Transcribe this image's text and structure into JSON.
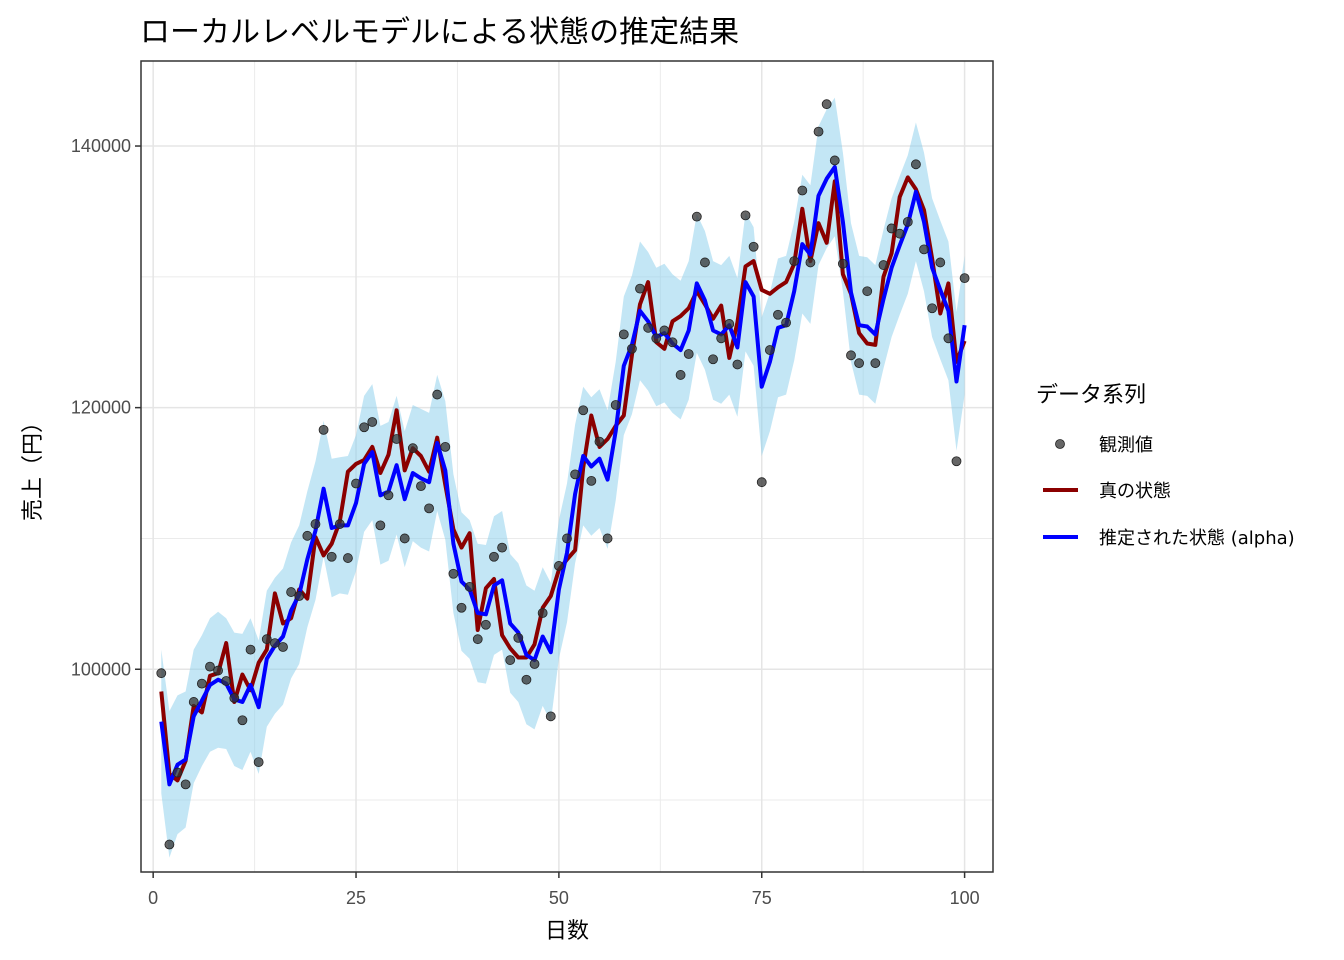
{
  "chart_data": {
    "type": "line",
    "title": "ローカルレベルモデルによる状態の推定結果",
    "xlabel": "日数",
    "ylabel": "売上（円）",
    "xlim": [
      -1.5,
      103.5
    ],
    "ylim": [
      84500,
      146500
    ],
    "x_ticks": [
      0,
      25,
      50,
      75,
      100
    ],
    "x_tick_labels": [
      "0",
      "25",
      "50",
      "75",
      "100"
    ],
    "y_ticks": [
      100000,
      120000,
      140000
    ],
    "y_tick_labels": [
      "100000",
      "120000",
      "140000"
    ],
    "grid": true,
    "legend_position": "right",
    "legend_title": "データ系列",
    "legend": [
      {
        "name": "観測値",
        "kind": "point",
        "color": "#333333"
      },
      {
        "name": "真の状態",
        "kind": "line",
        "color": "#8b0000"
      },
      {
        "name": "推定された状態 (alpha)",
        "kind": "line",
        "color": "#0000ff"
      }
    ],
    "interval_color": "#87ceeb",
    "x": [
      1,
      2,
      3,
      4,
      5,
      6,
      7,
      8,
      9,
      10,
      11,
      12,
      13,
      14,
      15,
      16,
      17,
      18,
      19,
      20,
      21,
      22,
      23,
      24,
      25,
      26,
      27,
      28,
      29,
      30,
      31,
      32,
      33,
      34,
      35,
      36,
      37,
      38,
      39,
      40,
      41,
      42,
      43,
      44,
      45,
      46,
      47,
      48,
      49,
      50,
      51,
      52,
      53,
      54,
      55,
      56,
      57,
      58,
      59,
      60,
      61,
      62,
      63,
      64,
      65,
      66,
      67,
      68,
      69,
      70,
      71,
      72,
      73,
      74,
      75,
      76,
      77,
      78,
      79,
      80,
      81,
      82,
      83,
      84,
      85,
      86,
      87,
      88,
      89,
      90,
      91,
      92,
      93,
      94,
      95,
      96,
      97,
      98,
      99,
      100
    ],
    "series": [
      {
        "name": "観測値",
        "type": "scatter",
        "values": [
          99700,
          86600,
          92100,
          91200,
          97500,
          98900,
          100200,
          99900,
          99100,
          97800,
          96100,
          101500,
          92900,
          102300,
          102000,
          101700,
          105900,
          105600,
          110200,
          111100,
          118300,
          108600,
          111100,
          108500,
          114200,
          118500,
          118900,
          111000,
          113300,
          117600,
          110000,
          116900,
          114000,
          112300,
          121000,
          117000,
          107300,
          104700,
          106300,
          102300,
          103400,
          108600,
          109300,
          100700,
          102400,
          99200,
          100400,
          104300,
          96400,
          107900,
          110000,
          114900,
          119800,
          114400,
          117400,
          110000,
          120200,
          125600,
          124500,
          129100,
          126100,
          125300,
          125900,
          125000,
          122500,
          124100,
          134600,
          131100,
          123700,
          125300,
          126400,
          123300,
          134700,
          132300,
          114300,
          124400,
          127100,
          126500,
          131200,
          136600,
          131100,
          141100,
          143200,
          138900,
          131000,
          124000,
          123400,
          128900,
          123400,
          130900,
          133700,
          133300,
          134200,
          138600,
          132100,
          127600,
          131100,
          125300,
          115900,
          129900
        ]
      },
      {
        "name": "真の状態",
        "type": "line",
        "values": [
          98300,
          92000,
          91500,
          93000,
          97200,
          96700,
          99500,
          99700,
          102000,
          97500,
          99600,
          98400,
          100500,
          101500,
          105800,
          103500,
          103900,
          106100,
          105400,
          110100,
          108700,
          109600,
          111300,
          115100,
          115700,
          116000,
          117000,
          115000,
          116400,
          119800,
          115200,
          116900,
          116300,
          115100,
          117700,
          114100,
          110700,
          109300,
          110400,
          103000,
          106200,
          106900,
          102600,
          101600,
          100900,
          100900,
          101900,
          104700,
          105600,
          107600,
          108400,
          109100,
          115400,
          119400,
          117000,
          117600,
          118600,
          119400,
          124000,
          127900,
          129600,
          125000,
          124500,
          126600,
          127000,
          127600,
          128900,
          127900,
          126800,
          127800,
          123800,
          126500,
          130800,
          131200,
          129000,
          128700,
          129200,
          129600,
          131000,
          135200,
          131200,
          134100,
          132600,
          137300,
          130200,
          128700,
          125700,
          124900,
          124800,
          130000,
          131800,
          136100,
          137600,
          136700,
          135100,
          131400,
          127200,
          129500,
          123500,
          125100
        ]
      },
      {
        "name": "推定された状態 (alpha)",
        "type": "line",
        "values": [
          96000,
          91200,
          92700,
          93100,
          96400,
          97600,
          98800,
          99200,
          98900,
          97700,
          97500,
          98800,
          97100,
          100800,
          101800,
          102500,
          104500,
          105700,
          108400,
          110600,
          113800,
          110800,
          111000,
          111000,
          112700,
          115700,
          116600,
          113300,
          113600,
          115600,
          113000,
          115000,
          114600,
          114300,
          117300,
          115200,
          109600,
          106700,
          106100,
          104300,
          104200,
          106400,
          106800,
          103500,
          102800,
          101100,
          100700,
          102500,
          101300,
          106100,
          108900,
          113400,
          116300,
          115500,
          116100,
          114500,
          118200,
          123200,
          124800,
          127400,
          126600,
          125400,
          125700,
          124900,
          124400,
          125900,
          129500,
          128200,
          125900,
          125600,
          126300,
          124600,
          129600,
          128500,
          121600,
          123500,
          126100,
          126300,
          128900,
          132500,
          131700,
          136200,
          137500,
          138400,
          134200,
          128800,
          126300,
          126200,
          125600,
          128300,
          130700,
          132400,
          134000,
          136500,
          134200,
          130700,
          129000,
          127400,
          122000,
          126300
        ]
      },
      {
        "name": "interval_upper",
        "type": "band_upper",
        "values": [
          101500,
          96800,
          98000,
          98300,
          101500,
          102600,
          103900,
          104400,
          103900,
          102800,
          102700,
          103900,
          102200,
          106000,
          107000,
          107700,
          109700,
          111000,
          113600,
          115900,
          119000,
          116100,
          116200,
          116300,
          117900,
          120900,
          121800,
          118600,
          118900,
          120900,
          118200,
          120200,
          119900,
          119600,
          122500,
          120500,
          114900,
          112000,
          111400,
          109600,
          109500,
          111700,
          112100,
          108800,
          108100,
          106400,
          106000,
          107800,
          106600,
          111400,
          114200,
          118700,
          121600,
          120800,
          121400,
          119800,
          123500,
          128500,
          130100,
          132700,
          131900,
          130700,
          131000,
          130200,
          129700,
          131200,
          134800,
          133500,
          131200,
          130900,
          131600,
          129900,
          134900,
          133800,
          126900,
          128800,
          131400,
          131600,
          134200,
          137800,
          137000,
          141500,
          142800,
          143700,
          139500,
          134100,
          131600,
          131500,
          130900,
          133600,
          136000,
          137700,
          139300,
          141800,
          139500,
          136000,
          134300,
          132700,
          127300,
          131600
        ]
      },
      {
        "name": "interval_lower",
        "type": "band_lower",
        "values": [
          90500,
          85600,
          87400,
          87900,
          91300,
          92600,
          93700,
          94000,
          93900,
          92600,
          92300,
          93700,
          92000,
          95600,
          96600,
          97300,
          99300,
          100400,
          103200,
          105300,
          108600,
          105500,
          105800,
          105700,
          107500,
          110500,
          111400,
          108000,
          108300,
          110300,
          107800,
          109800,
          109300,
          109000,
          112100,
          109900,
          104300,
          101400,
          100800,
          99000,
          98900,
          101100,
          101500,
          98200,
          97500,
          95800,
          95400,
          97200,
          96000,
          100800,
          103600,
          108100,
          111000,
          110200,
          110800,
          109200,
          112900,
          117900,
          119500,
          122100,
          121300,
          120100,
          120400,
          119600,
          119100,
          120600,
          124200,
          122900,
          120600,
          120300,
          121000,
          119300,
          124300,
          123200,
          116300,
          118200,
          120800,
          121000,
          123600,
          127200,
          126400,
          130900,
          132200,
          133100,
          128900,
          123500,
          121000,
          120900,
          120300,
          123000,
          125400,
          127100,
          128700,
          131200,
          128900,
          125400,
          123700,
          122100,
          116700,
          121000
        ]
      }
    ]
  }
}
